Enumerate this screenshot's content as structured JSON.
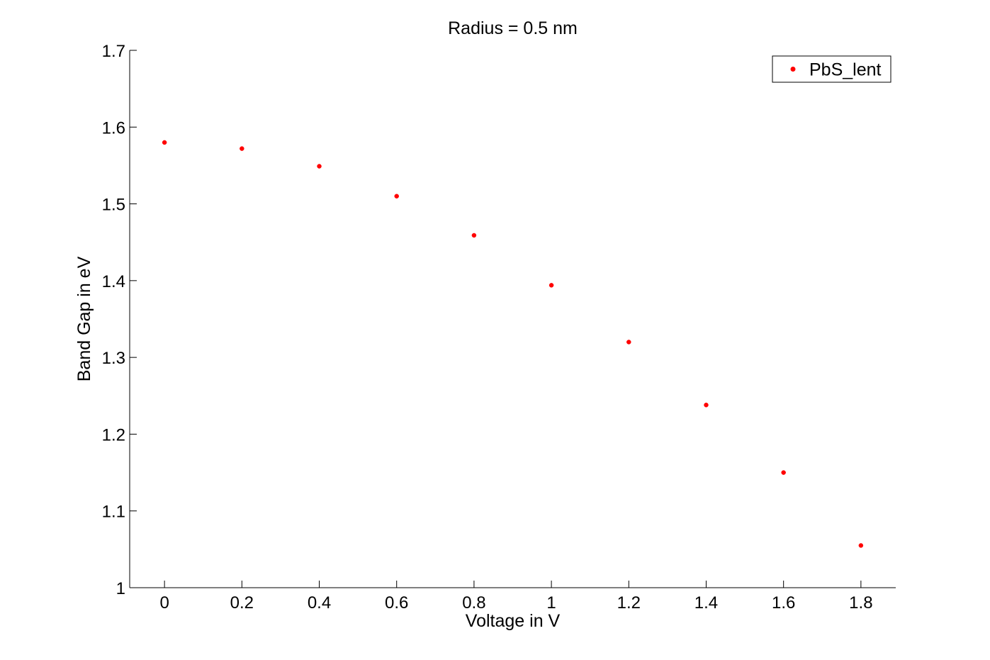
{
  "chart_data": {
    "type": "scatter",
    "title": "Radius = 0.5 nm",
    "xlabel": "Voltage in V",
    "ylabel": "Band Gap in eV",
    "xlim": [
      -0.09,
      1.89
    ],
    "ylim": [
      1.0,
      1.7
    ],
    "xticks": [
      0,
      0.2,
      0.4,
      0.6,
      0.8,
      1,
      1.2,
      1.4,
      1.6,
      1.8
    ],
    "xtick_labels": [
      "0",
      "0.2",
      "0.4",
      "0.6",
      "0.8",
      "1",
      "1.2",
      "1.4",
      "1.6",
      "1.8"
    ],
    "yticks": [
      1.0,
      1.1,
      1.2,
      1.3,
      1.4,
      1.5,
      1.6,
      1.7
    ],
    "ytick_labels": [
      "1",
      "1.1",
      "1.2",
      "1.3",
      "1.4",
      "1.5",
      "1.6",
      "1.7"
    ],
    "grid": false,
    "legend_position": "top-right",
    "series": [
      {
        "name": "PbS_lent",
        "color": "#ff0000",
        "marker": "dot",
        "x": [
          0,
          0.2,
          0.4,
          0.6,
          0.8,
          1.0,
          1.2,
          1.4,
          1.6,
          1.8
        ],
        "y": [
          1.58,
          1.572,
          1.549,
          1.51,
          1.459,
          1.394,
          1.32,
          1.238,
          1.15,
          1.055
        ]
      }
    ]
  }
}
